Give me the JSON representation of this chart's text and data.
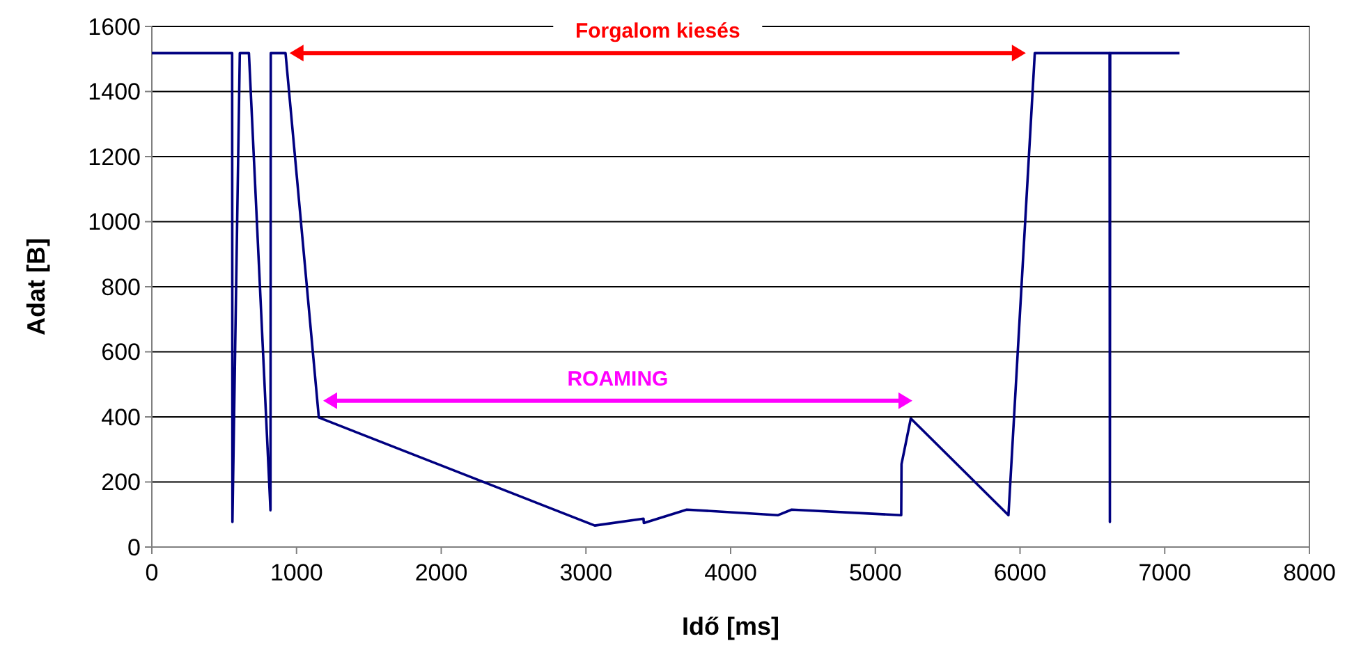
{
  "chart_data": {
    "type": "line",
    "xlabel": "Idő [ms]",
    "ylabel": "Adat [B]",
    "xlim": [
      0,
      8000
    ],
    "xticks": [
      0,
      1000,
      2000,
      3000,
      4000,
      5000,
      6000,
      7000,
      8000
    ],
    "ylim": [
      0,
      1600
    ],
    "yticks": [
      0,
      200,
      400,
      600,
      800,
      1000,
      1200,
      1400,
      1600
    ],
    "grid": "y",
    "marker": "none",
    "line_style": "solid",
    "series": [
      {
        "color": "#000080",
        "x": [
          0,
          555,
          557,
          608,
          671,
          820,
          822,
          924,
          1154,
          3061,
          3398,
          3400,
          3697,
          4328,
          4422,
          5179,
          5181,
          5245,
          5920,
          6102,
          6619,
          6621,
          6623,
          7102
        ],
        "values": [
          1518,
          1518,
          77,
          1518,
          1518,
          113,
          1518,
          1518,
          398,
          66,
          87,
          74,
          115,
          98,
          115,
          98,
          255,
          395,
          98,
          1518,
          1518,
          77,
          1518,
          1518
        ]
      }
    ],
    "annotations": [
      "Forgalom kiesés",
      "ROAMING"
    ]
  }
}
